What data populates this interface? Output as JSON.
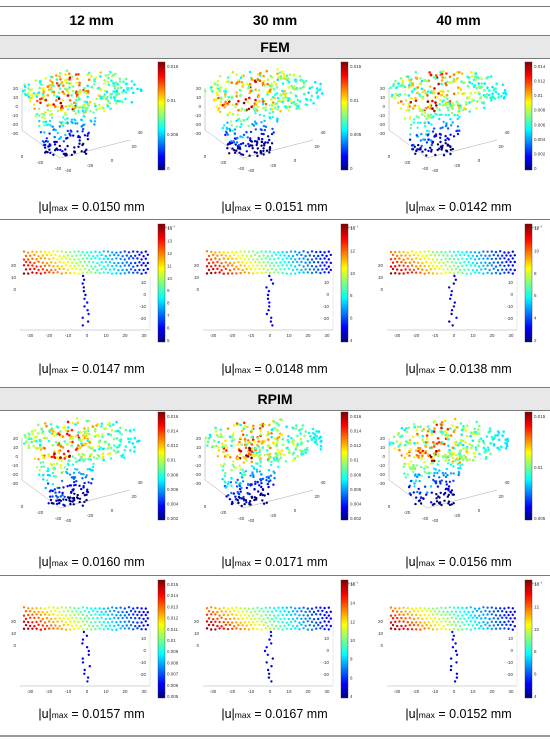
{
  "columns": [
    "12 mm",
    "30 mm",
    "40 mm"
  ],
  "sections": [
    {
      "title": "FEM",
      "rows": [
        {
          "view": "3d",
          "captions": [
            {
              "prefix": "|u|",
              "sub": "max",
              "value": " = 0.0150 mm"
            },
            {
              "prefix": "|u|",
              "sub": "max",
              "value": " = 0.0151 mm"
            },
            {
              "prefix": "|u|",
              "sub": "max",
              "value": " = 0.0142 mm"
            }
          ],
          "colorbars": [
            {
              "ticks": [
                "0.015",
                "0.01",
                "0.005",
                "0"
              ],
              "exp": ""
            },
            {
              "ticks": [
                "0.015",
                "0.01",
                "0.005",
                "0"
              ],
              "exp": ""
            },
            {
              "ticks": [
                "0.014",
                "0.012",
                "0.01",
                "0.008",
                "0.006",
                "0.004",
                "0.002",
                "0"
              ],
              "exp": ""
            }
          ]
        },
        {
          "view": "2d",
          "captions": [
            {
              "prefix": "|u|",
              "sub": "max",
              "value": " = 0.0147 mm"
            },
            {
              "prefix": "|u|",
              "sub": "max",
              "value": " = 0.0148 mm"
            },
            {
              "prefix": "|u|",
              "sub": "max",
              "value": " = 0.0138 mm"
            }
          ],
          "colorbars": [
            {
              "ticks": [
                "14",
                "13",
                "12",
                "11",
                "10",
                "9",
                "8",
                "7",
                "6",
                "5"
              ],
              "exp": "x 10⁻³"
            },
            {
              "ticks": [
                "14",
                "12",
                "10",
                "8",
                "6",
                "4"
              ],
              "exp": "x 10⁻³"
            },
            {
              "ticks": [
                "12",
                "10",
                "8",
                "6",
                "4",
                "2"
              ],
              "exp": "x 10⁻³"
            }
          ]
        }
      ]
    },
    {
      "title": "RPIM",
      "rows": [
        {
          "view": "3d",
          "captions": [
            {
              "prefix": "|u|",
              "sub": "max",
              "value": " = 0.0160 mm"
            },
            {
              "prefix": "|u|",
              "sub": "max",
              "value": " = 0.0171 mm"
            },
            {
              "prefix": "|u|",
              "sub": "max",
              "value": " = 0.0156 mm"
            }
          ],
          "colorbars": [
            {
              "ticks": [
                "0.016",
                "0.014",
                "0.012",
                "0.01",
                "0.008",
                "0.006",
                "0.004",
                "0.002"
              ],
              "exp": ""
            },
            {
              "ticks": [
                "0.016",
                "0.014",
                "0.012",
                "0.01",
                "0.008",
                "0.006",
                "0.004",
                "0.002"
              ],
              "exp": ""
            },
            {
              "ticks": [
                "0.015",
                "0.01",
                "0.005"
              ],
              "exp": ""
            }
          ]
        },
        {
          "view": "2d",
          "captions": [
            {
              "prefix": "|u|",
              "sub": "max",
              "value": " = 0.0157 mm"
            },
            {
              "prefix": "|u|",
              "sub": "max",
              "value": " = 0.0167 mm"
            },
            {
              "prefix": "|u|",
              "sub": "max",
              "value": " = 0.0152 mm"
            }
          ],
          "colorbars": [
            {
              "ticks": [
                "0.015",
                "0.014",
                "0.013",
                "0.012",
                "0.011",
                "0.01",
                "0.009",
                "0.008",
                "0.007",
                "0.006",
                "0.005"
              ],
              "exp": ""
            },
            {
              "ticks": [
                "16",
                "14",
                "12",
                "10",
                "8",
                "6",
                "4"
              ],
              "exp": "x 10⁻³"
            },
            {
              "ticks": [
                "14",
                "12",
                "10",
                "8",
                "6",
                "4"
              ],
              "exp": "x 10⁻³"
            }
          ]
        }
      ]
    }
  ],
  "axes": {
    "z3d": [
      "20",
      "10",
      "0",
      "-10",
      "-20",
      "-30"
    ],
    "x3d": [
      "-40",
      "-20",
      "0",
      "20",
      "40"
    ],
    "y3d": [
      "-40",
      "-20",
      "0",
      "20",
      "40"
    ],
    "x2d": [
      "-30",
      "-20",
      "-10",
      "0",
      "10",
      "20",
      "30"
    ],
    "y2d": [
      "20",
      "10",
      "0"
    ],
    "d2d": [
      "10",
      "0",
      "-10",
      "-20"
    ]
  },
  "colors": {
    "header_bg": "#e8e8e8",
    "rule": "#7a7a7a",
    "colormap": [
      "#00007f",
      "#0000ff",
      "#007fff",
      "#00ffff",
      "#7fff7f",
      "#ffff00",
      "#ff7f00",
      "#ff0000",
      "#7f0000"
    ]
  }
}
